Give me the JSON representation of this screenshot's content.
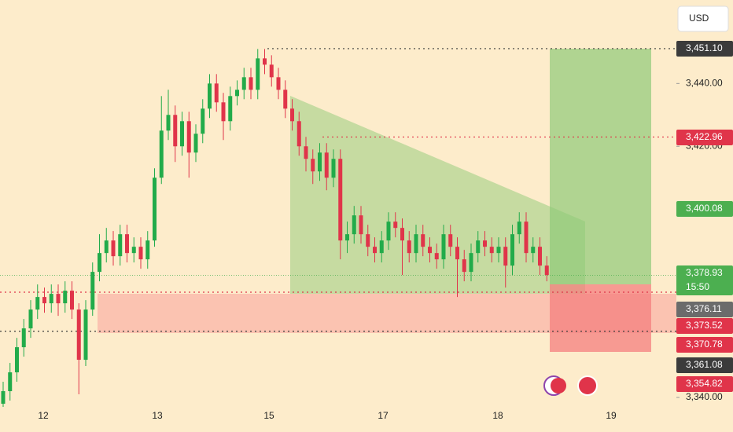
{
  "chart_data": {
    "type": "candlestick",
    "currency": "USD",
    "up_color": "#22ab4a",
    "down_color": "#e0344a",
    "ylim": [
      3336.5,
      3466.6
    ],
    "yticks": [
      {
        "value": 3440,
        "label": "3,440.00"
      },
      {
        "value": 3420,
        "label": "3,420.00"
      },
      {
        "value": 3340,
        "label": "3,340.00"
      }
    ],
    "xlabels": [
      "12",
      "13",
      "15",
      "17",
      "18",
      "19"
    ],
    "candles": {
      "open": [
        3338,
        3342,
        3348,
        3356,
        3362,
        3368,
        3372,
        3370,
        3373,
        3370,
        3374,
        3368,
        3352,
        3368,
        3380,
        3386,
        3390,
        3385,
        3392,
        3386,
        3388,
        3384,
        3390,
        3410,
        3425,
        3430,
        3420,
        3428,
        3418,
        3424,
        3432,
        3440,
        3434,
        3428,
        3436,
        3438,
        3442,
        3438,
        3448,
        3446,
        3442,
        3438,
        3432,
        3428,
        3420,
        3416,
        3412,
        3418,
        3410,
        3416,
        3390,
        3392,
        3398,
        3392,
        3388,
        3386,
        3390,
        3396,
        3394,
        3390,
        3386,
        3392,
        3388,
        3386,
        3384,
        3392,
        3388,
        3384,
        3380,
        3386,
        3390,
        3388,
        3386,
        3388,
        3382,
        3392,
        3396,
        3386,
        3388,
        3382
      ],
      "high": [
        3345,
        3351,
        3359,
        3365,
        3371,
        3376,
        3375,
        3376,
        3376,
        3377,
        3377,
        3370,
        3371,
        3383,
        3392,
        3394,
        3393,
        3395,
        3395,
        3391,
        3391,
        3393,
        3413,
        3436,
        3438,
        3433,
        3431,
        3431,
        3427,
        3435,
        3443,
        3443,
        3437,
        3439,
        3441,
        3445,
        3445,
        3451,
        3451,
        3449,
        3445,
        3441,
        3435,
        3431,
        3423,
        3419,
        3421,
        3421,
        3419,
        3419,
        3396,
        3401,
        3401,
        3395,
        3391,
        3393,
        3399,
        3399,
        3397,
        3393,
        3395,
        3395,
        3391,
        3389,
        3395,
        3395,
        3391,
        3387,
        3389,
        3393,
        3393,
        3391,
        3391,
        3391,
        3395,
        3399,
        3399,
        3391,
        3391,
        3385
      ],
      "low": [
        3337,
        3339,
        3345,
        3353,
        3359,
        3365,
        3367,
        3367,
        3366,
        3367,
        3365,
        3341,
        3350,
        3366,
        3377,
        3383,
        3382,
        3382,
        3383,
        3383,
        3381,
        3381,
        3388,
        3408,
        3422,
        3415,
        3417,
        3410,
        3415,
        3421,
        3429,
        3431,
        3422,
        3425,
        3433,
        3435,
        3435,
        3435,
        3443,
        3439,
        3435,
        3429,
        3425,
        3417,
        3412,
        3408,
        3409,
        3406,
        3407,
        3384,
        3386,
        3389,
        3389,
        3385,
        3383,
        3383,
        3387,
        3391,
        3379,
        3383,
        3383,
        3385,
        3383,
        3381,
        3381,
        3385,
        3372,
        3377,
        3377,
        3383,
        3385,
        3383,
        3383,
        3375,
        3379,
        3389,
        3383,
        3383,
        3379,
        3377
      ],
      "close": [
        3342,
        3348,
        3356,
        3362,
        3368,
        3372,
        3370,
        3373,
        3370,
        3374,
        3368,
        3352,
        3368,
        3380,
        3386,
        3390,
        3385,
        3392,
        3386,
        3388,
        3384,
        3390,
        3410,
        3425,
        3430,
        3420,
        3428,
        3418,
        3424,
        3432,
        3440,
        3434,
        3428,
        3436,
        3438,
        3442,
        3438,
        3448,
        3446,
        3442,
        3438,
        3432,
        3428,
        3420,
        3416,
        3412,
        3418,
        3410,
        3416,
        3390,
        3392,
        3398,
        3392,
        3388,
        3386,
        3390,
        3396,
        3394,
        3390,
        3386,
        3392,
        3388,
        3386,
        3384,
        3392,
        3388,
        3384,
        3380,
        3386,
        3390,
        3388,
        3386,
        3388,
        3382,
        3392,
        3396,
        3386,
        3388,
        3382,
        3379
      ]
    },
    "price_badges": [
      {
        "value": 3451.1,
        "label": "3,451.10",
        "color": "#3b3b3b"
      },
      {
        "value": 3422.96,
        "label": "3,422.96",
        "color": "#e0344a"
      },
      {
        "value": 3400.08,
        "label": "3,400.08",
        "color": "#4caf50"
      },
      {
        "value": 3378.93,
        "label": "3,378.93",
        "color": "#4caf50"
      },
      {
        "value": 3376.11,
        "label": "3,376.11",
        "color": "#6b6b6b"
      },
      {
        "value": 3373.52,
        "label": "3,373.52",
        "color": "#e0344a"
      },
      {
        "value": 3370.78,
        "label": "3,370.78",
        "color": "#e0344a"
      },
      {
        "value": 3361.08,
        "label": "3,361.08",
        "color": "#3b3b3b"
      },
      {
        "value": 3354.82,
        "label": "3,354.82",
        "color": "#e0344a"
      }
    ],
    "countdown": "15:50"
  }
}
